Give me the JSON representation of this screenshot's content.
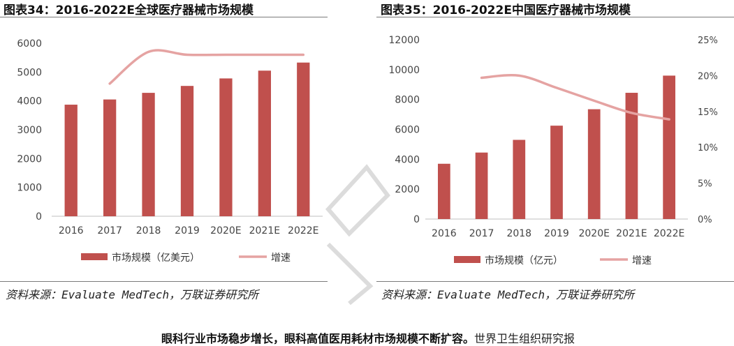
{
  "figures": [
    {
      "title": "图表34：2016-2022E全球医疗器械市场规模",
      "source": "资料来源：Evaluate MedTech，万联证券研究所",
      "chart_data": {
        "type": "bar",
        "categories": [
          "2016",
          "2017",
          "2018",
          "2019",
          "2020E",
          "2021E",
          "2022E"
        ],
        "series": [
          {
            "name": "市场规模（亿美元）",
            "type": "bar",
            "axis": "left",
            "values": [
              3870,
              4050,
              4280,
              4520,
              4780,
              5050,
              5330
            ]
          },
          {
            "name": "增速",
            "type": "line",
            "axis": "right",
            "values": [
              null,
              4.6,
              5.7,
              5.6,
              5.6,
              5.6,
              5.6
            ]
          }
        ],
        "ylim": [
          0,
          6000
        ],
        "yticks": [
          "0",
          "1000",
          "2000",
          "3000",
          "4000",
          "5000",
          "6000"
        ],
        "y2lim": [
          0,
          6
        ],
        "y2ticks": [
          "0%",
          "1%",
          "2%",
          "3%",
          "4%",
          "5%",
          "6%"
        ],
        "legend": "bottom",
        "grid": false,
        "colors": {
          "bar": "#c0504d",
          "line": "#e5a3a2"
        }
      }
    },
    {
      "title": "图表35：2016-2022E中国医疗器械市场规模",
      "source": "资料来源：Evaluate MedTech，万联证券研究所",
      "chart_data": {
        "type": "bar",
        "categories": [
          "2016",
          "2017",
          "2018",
          "2019",
          "2020E",
          "2021E",
          "2022E"
        ],
        "series": [
          {
            "name": "市场规模（亿元）",
            "type": "bar",
            "axis": "left",
            "values": [
              3700,
              4450,
              5300,
              6250,
              7350,
              8450,
              9600
            ]
          },
          {
            "name": "增速",
            "type": "line",
            "axis": "right",
            "values": [
              null,
              19.7,
              20.0,
              18.3,
              16.5,
              14.8,
              13.9
            ]
          }
        ],
        "ylim": [
          0,
          12000
        ],
        "yticks": [
          "0",
          "2000",
          "4000",
          "6000",
          "8000",
          "10000",
          "12000"
        ],
        "y2lim": [
          0,
          25
        ],
        "y2ticks": [
          "0%",
          "5%",
          "10%",
          "15%",
          "20%",
          "25%"
        ],
        "legend": "bottom",
        "grid": false,
        "colors": {
          "bar": "#c0504d",
          "line": "#e5a3a2"
        }
      }
    }
  ],
  "body": {
    "bold": "眼科行业市场稳步增长，眼科高值医用耗材市场规模不断扩容。",
    "rest": "世界卫生组织研究报"
  }
}
